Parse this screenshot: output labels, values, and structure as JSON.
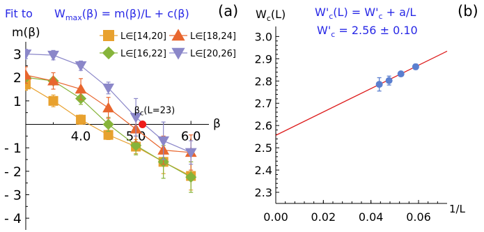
{
  "chart_data": [
    {
      "panel_label": "(a)",
      "type": "line",
      "title_prefix": "Fit to",
      "title_formula": "W_max(β) = m(β)/L + c(β)",
      "ylabel": "m(β)",
      "xlabel": "β",
      "xlim": [
        3.0,
        6.2
      ],
      "ylim": [
        -4.5,
        3.4
      ],
      "xticks": [
        4.0,
        5.0,
        6.0
      ],
      "xtick_labels": [
        "4.0",
        "5.0",
        "6.0"
      ],
      "yticks": [
        3,
        2,
        1,
        -1,
        -2,
        -3,
        -4
      ],
      "ytick_labels": [
        "3",
        "2",
        "1",
        "- 1",
        "- 2",
        "- 3",
        "- 4"
      ],
      "legend_location": "top",
      "annotation": {
        "text": "β_c(L=23)",
        "x": 5.12,
        "y": 0.0,
        "marker_color": "#ee1c1c"
      },
      "series": [
        {
          "name": "L∈[14,20]",
          "marker": "square",
          "color": "#e8a12e",
          "x": [
            3.0,
            3.5,
            4.0,
            4.5,
            5.0,
            5.5,
            6.0
          ],
          "y": [
            1.7,
            1.0,
            0.2,
            -0.45,
            -0.95,
            -1.6,
            -2.2
          ],
          "err": [
            0.25,
            0.25,
            0.2,
            0.2,
            0.3,
            0.5,
            0.6
          ]
        },
        {
          "name": "L∈[16,22]",
          "marker": "diamond",
          "color": "#86b43a",
          "x": [
            3.0,
            3.5,
            4.0,
            4.5,
            5.0,
            5.5,
            6.0
          ],
          "y": [
            2.0,
            1.85,
            1.1,
            0.0,
            -0.9,
            -1.6,
            -2.25
          ],
          "err": [
            0.15,
            0.15,
            0.25,
            0.3,
            0.4,
            0.7,
            0.65
          ]
        },
        {
          "name": "L∈[18,24]",
          "marker": "triangle-up",
          "color": "#e8662e",
          "x": [
            3.0,
            3.5,
            4.0,
            4.5,
            5.0,
            5.5,
            6.0
          ],
          "y": [
            2.1,
            1.85,
            1.5,
            0.7,
            -0.2,
            -1.1,
            -1.2
          ],
          "err": [
            0.35,
            0.35,
            0.45,
            0.45,
            0.55,
            0.6,
            0.75
          ]
        },
        {
          "name": "L∈[20,26]",
          "marker": "triangle-down",
          "color": "#8b87c9",
          "x": [
            3.0,
            3.5,
            4.0,
            4.5,
            5.0,
            5.5,
            6.0
          ],
          "y": [
            3.0,
            2.95,
            2.5,
            1.55,
            0.3,
            -0.7,
            -1.2
          ],
          "err": [
            0.2,
            0.2,
            0.2,
            0.25,
            0.8,
            0.8,
            0.5
          ]
        }
      ]
    },
    {
      "panel_label": "(b)",
      "type": "scatter",
      "ylabel": "W_c(L)",
      "xlabel": "1/L",
      "fit_formula": "W'_c(L) = W'_c + a/L",
      "fit_result": "W'_c = 2.56 ± 0.10",
      "xlim": [
        0.0,
        0.072
      ],
      "ylim": [
        2.25,
        3.02
      ],
      "xticks": [
        0.0,
        0.02,
        0.04,
        0.06
      ],
      "xtick_labels": [
        "0.00",
        "0.02",
        "0.04",
        "0.06"
      ],
      "yticks": [
        2.3,
        2.4,
        2.5,
        2.6,
        2.7,
        2.8,
        2.9,
        3.0
      ],
      "ytick_labels": [
        "2.3",
        "2.4",
        "2.5",
        "2.6",
        "2.7",
        "2.8",
        "2.9",
        "3.0"
      ],
      "points": {
        "color": "#5b7fcf",
        "x": [
          0.0435,
          0.0476,
          0.0526,
          0.0588
        ],
        "y": [
          2.785,
          2.802,
          2.832,
          2.864
        ],
        "err": [
          0.03,
          0.02,
          0.01,
          0.012
        ]
      },
      "fit_line": {
        "color": "#dd1c1c",
        "intercept": 2.556,
        "slope": 5.25
      }
    }
  ]
}
